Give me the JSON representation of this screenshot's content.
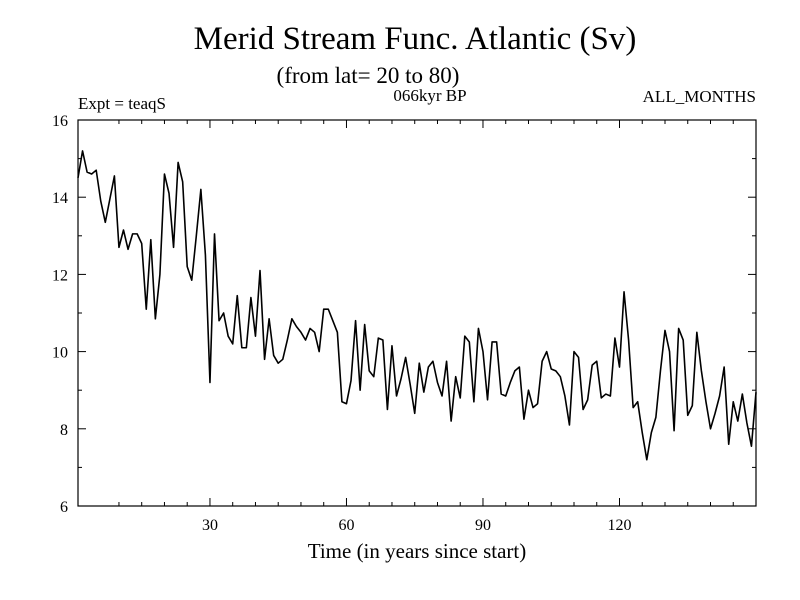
{
  "chart_data": {
    "type": "line",
    "title": "Merid Stream Func. Atlantic (Sv)",
    "subtitle": "(from lat= 20 to 80)",
    "top_left_label": "Expt = teaqS",
    "top_center_label": "066kyr BP",
    "top_right_label": "ALL_MONTHS",
    "xlabel": "Time (in years since start)",
    "ylabel": "",
    "xlim": [
      1,
      150
    ],
    "ylim": [
      6,
      16
    ],
    "x_ticks": [
      30,
      60,
      90,
      120
    ],
    "y_ticks": [
      6,
      8,
      10,
      12,
      14,
      16
    ],
    "grid": false,
    "series": [
      {
        "name": "Merid Stream Func. Atlantic",
        "color": "#000000",
        "values": [
          14.5,
          15.2,
          14.65,
          14.6,
          14.7,
          13.9,
          13.35,
          13.95,
          14.55,
          12.7,
          13.15,
          12.65,
          13.05,
          13.05,
          12.8,
          11.1,
          12.9,
          10.85,
          12.0,
          14.6,
          14.1,
          12.7,
          14.9,
          14.4,
          12.2,
          11.85,
          13.0,
          14.2,
          12.5,
          9.2,
          13.05,
          10.8,
          11.0,
          10.4,
          10.2,
          11.45,
          10.1,
          10.1,
          11.4,
          10.4,
          12.1,
          9.8,
          10.85,
          9.9,
          9.7,
          9.8,
          10.3,
          10.85,
          10.65,
          10.5,
          10.3,
          10.6,
          10.5,
          10.0,
          11.1,
          11.1,
          10.8,
          10.5,
          8.7,
          8.65,
          9.25,
          10.8,
          9.0,
          10.7,
          9.5,
          9.35,
          10.35,
          10.3,
          8.5,
          10.15,
          8.85,
          9.3,
          9.85,
          9.15,
          8.4,
          9.7,
          8.95,
          9.6,
          9.75,
          9.2,
          8.85,
          9.75,
          8.2,
          9.35,
          8.8,
          10.4,
          10.25,
          8.7,
          10.6,
          10.0,
          8.75,
          10.25,
          10.25,
          8.9,
          8.85,
          9.2,
          9.5,
          9.6,
          8.25,
          9.0,
          8.55,
          8.65,
          9.75,
          10.0,
          9.55,
          9.5,
          9.35,
          8.85,
          8.1,
          10.0,
          9.85,
          8.5,
          8.75,
          9.65,
          9.75,
          8.8,
          8.9,
          8.85,
          10.35,
          9.6,
          11.55,
          10.3,
          8.55,
          8.7,
          7.9,
          7.2,
          7.9,
          8.3,
          9.5,
          10.55,
          10.0,
          7.95,
          10.6,
          10.3,
          8.35,
          8.6,
          10.5,
          9.5,
          8.7,
          8.0,
          8.4,
          8.85,
          9.6,
          7.6,
          8.7,
          8.2,
          8.9,
          8.15,
          7.55,
          8.95
        ]
      }
    ]
  }
}
